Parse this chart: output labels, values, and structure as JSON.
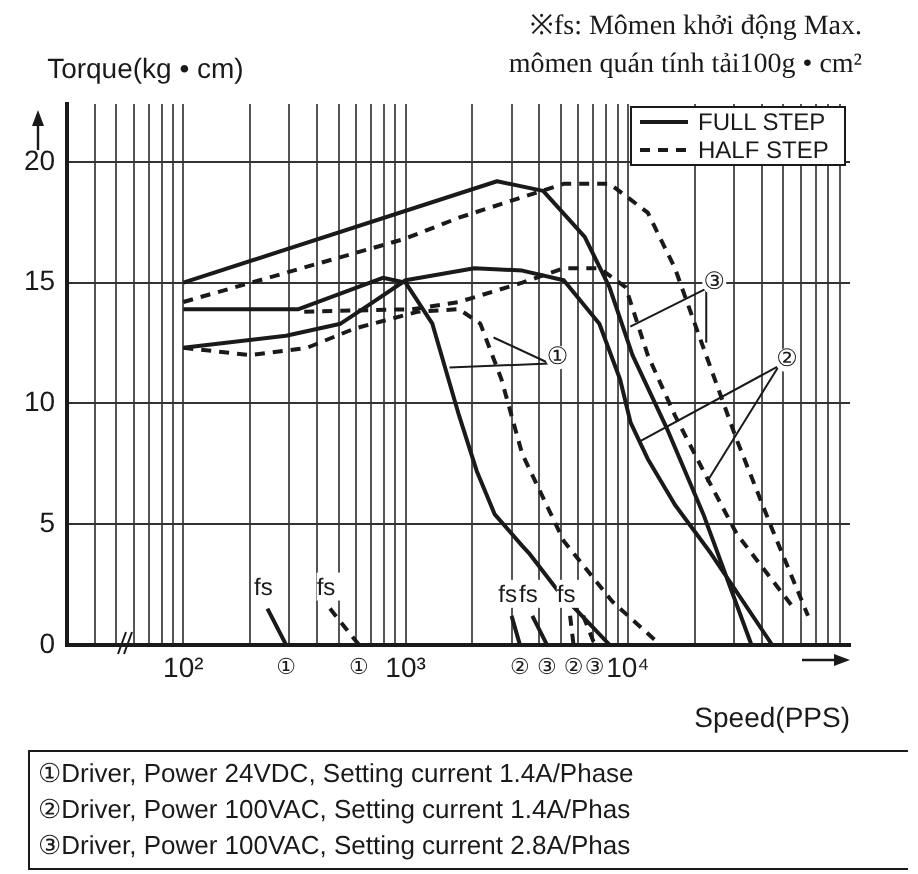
{
  "chart_data": {
    "type": "line",
    "subtitle": "※fs: Mômen khởi động Max.\nmômen quán tính tải100g • cm²",
    "xlabel": "Speed(PPS)",
    "ylabel": "Torque(kg • cm)",
    "log": "x",
    "grid": true,
    "legend": "top right",
    "marker": "none",
    "xlim": [
      30,
      100000
    ],
    "xticks": [
      {
        "value": 40,
        "label": null
      },
      {
        "value": 50,
        "label": null
      },
      {
        "value": 60,
        "label": null
      },
      {
        "value": 70,
        "label": null
      },
      {
        "value": 80,
        "label": null
      },
      {
        "value": 90,
        "label": null
      },
      {
        "value": 100,
        "label": "10²"
      },
      {
        "value": 200,
        "label": null
      },
      {
        "value": 300,
        "label": null
      },
      {
        "value": 400,
        "label": null
      },
      {
        "value": 500,
        "label": null
      },
      {
        "value": 600,
        "label": null
      },
      {
        "value": 700,
        "label": null
      },
      {
        "value": 800,
        "label": null
      },
      {
        "value": 900,
        "label": null
      },
      {
        "value": 1000,
        "label": "10³"
      },
      {
        "value": 2000,
        "label": null
      },
      {
        "value": 3000,
        "label": null
      },
      {
        "value": 4000,
        "label": null
      },
      {
        "value": 5000,
        "label": null
      },
      {
        "value": 6000,
        "label": null
      },
      {
        "value": 7000,
        "label": null
      },
      {
        "value": 8000,
        "label": null
      },
      {
        "value": 9000,
        "label": null
      },
      {
        "value": 10000,
        "label": "10⁴"
      },
      {
        "value": 20000,
        "label": null
      },
      {
        "value": 30000,
        "label": null
      },
      {
        "value": 40000,
        "label": null
      },
      {
        "value": 50000,
        "label": null
      },
      {
        "value": 60000,
        "label": null
      },
      {
        "value": 70000,
        "label": null
      },
      {
        "value": 80000,
        "label": null
      },
      {
        "value": 90000,
        "label": null
      }
    ],
    "ylim": [
      0,
      22.4
    ],
    "yticks": [
      0,
      5,
      10,
      15,
      20
    ],
    "series": [
      {
        "name": "FULL STEP",
        "color": "#1a1a1a",
        "line_style": "solid",
        "x": [
          100,
          330,
          790,
          1000,
          1320,
          1740,
          2090,
          2520,
          3350,
          3590,
          4790,
          8280,
          null,
          100,
          290,
          510,
          690,
          1000,
          2040,
          3350,
          5150,
          7450,
          9230,
          10300,
          12300,
          16300,
          23600,
          44600,
          null,
          100,
          2580,
          4160,
          6400,
          8280,
          10500,
          15100,
          21900,
          36000,
          null,
          239,
          290,
          null,
          3000,
          3270,
          null,
          3720,
          4330
        ],
        "values": [
          13.9,
          13.9,
          15.2,
          15.0,
          13.3,
          9.5,
          7.2,
          5.4,
          4.1,
          3.8,
          2.3,
          0,
          null,
          12.3,
          12.8,
          13.3,
          14.1,
          15.1,
          15.6,
          15.5,
          15.1,
          13.3,
          11.0,
          9.2,
          7.7,
          5.8,
          3.8,
          0,
          null,
          15.0,
          19.2,
          18.8,
          16.9,
          14.8,
          12.0,
          8.9,
          5.4,
          0,
          null,
          1.5,
          0,
          null,
          1.2,
          0,
          null,
          1.2,
          0
        ]
      },
      {
        "name": "HALF STEP",
        "color": "#1a1a1a",
        "line_style": "dashed",
        "x": [
          100,
          200,
          360,
          590,
          1140,
          1740,
          2170,
          2700,
          3350,
          5150,
          8500,
          14000,
          null,
          100,
          980,
          1750,
          5170,
          8280,
          12300,
          16300,
          21900,
          30900,
          44600,
          64700,
          null,
          457,
          617,
          null,
          5500,
          5700,
          null,
          6300,
          7100,
          null,
          350,
          1070,
          1740,
          3350,
          5150,
          7450,
          9800,
          12300,
          16300,
          21900,
          30900,
          56000
        ],
        "values": [
          12.3,
          12.0,
          12.3,
          13.1,
          13.8,
          13.9,
          13.3,
          11.0,
          7.9,
          4.3,
          1.8,
          0,
          null,
          14.2,
          16.8,
          17.7,
          19.1,
          19.1,
          17.9,
          15.6,
          12.3,
          8.5,
          4.8,
          1.2,
          null,
          1.5,
          0,
          null,
          1.2,
          0,
          null,
          1.2,
          0,
          null,
          13.8,
          13.9,
          14.2,
          15.0,
          15.6,
          15.6,
          14.8,
          12.0,
          9.5,
          7.2,
          4.6,
          1.5
        ]
      }
    ],
    "annotations": [
      {
        "text": "①",
        "x": 4830,
        "y": 11.9
      },
      {
        "text": "③",
        "x": 24500,
        "y": 15.0
      },
      {
        "text": "②",
        "x": 52000,
        "y": 11.8
      },
      {
        "text": "①",
        "x": 290,
        "y": 0
      },
      {
        "text": "fs",
        "x": 239,
        "y": 1.5
      },
      {
        "text": "①",
        "x": 617,
        "y": 0
      },
      {
        "text": "fs",
        "x": 457,
        "y": 1.5
      },
      {
        "text": "②",
        "x": 3270,
        "y": 0
      },
      {
        "text": "fs",
        "x": 3000,
        "y": 1.2
      },
      {
        "text": "③",
        "x": 4330,
        "y": 0
      },
      {
        "text": "fs",
        "x": 3720,
        "y": 1.2
      },
      {
        "text": "②",
        "x": 5700,
        "y": 0
      },
      {
        "text": "fs",
        "x": 5500,
        "y": 1.2
      },
      {
        "text": "③",
        "x": 7100,
        "y": 0
      },
      "①Driver, Power 24VDC, Setting current 1.4A/Phase",
      "②Driver, Power 100VAC, Setting current 1.4A/Phas",
      "③Driver, Power 100VAC, Setting current 2.8A/Phas"
    ]
  }
}
